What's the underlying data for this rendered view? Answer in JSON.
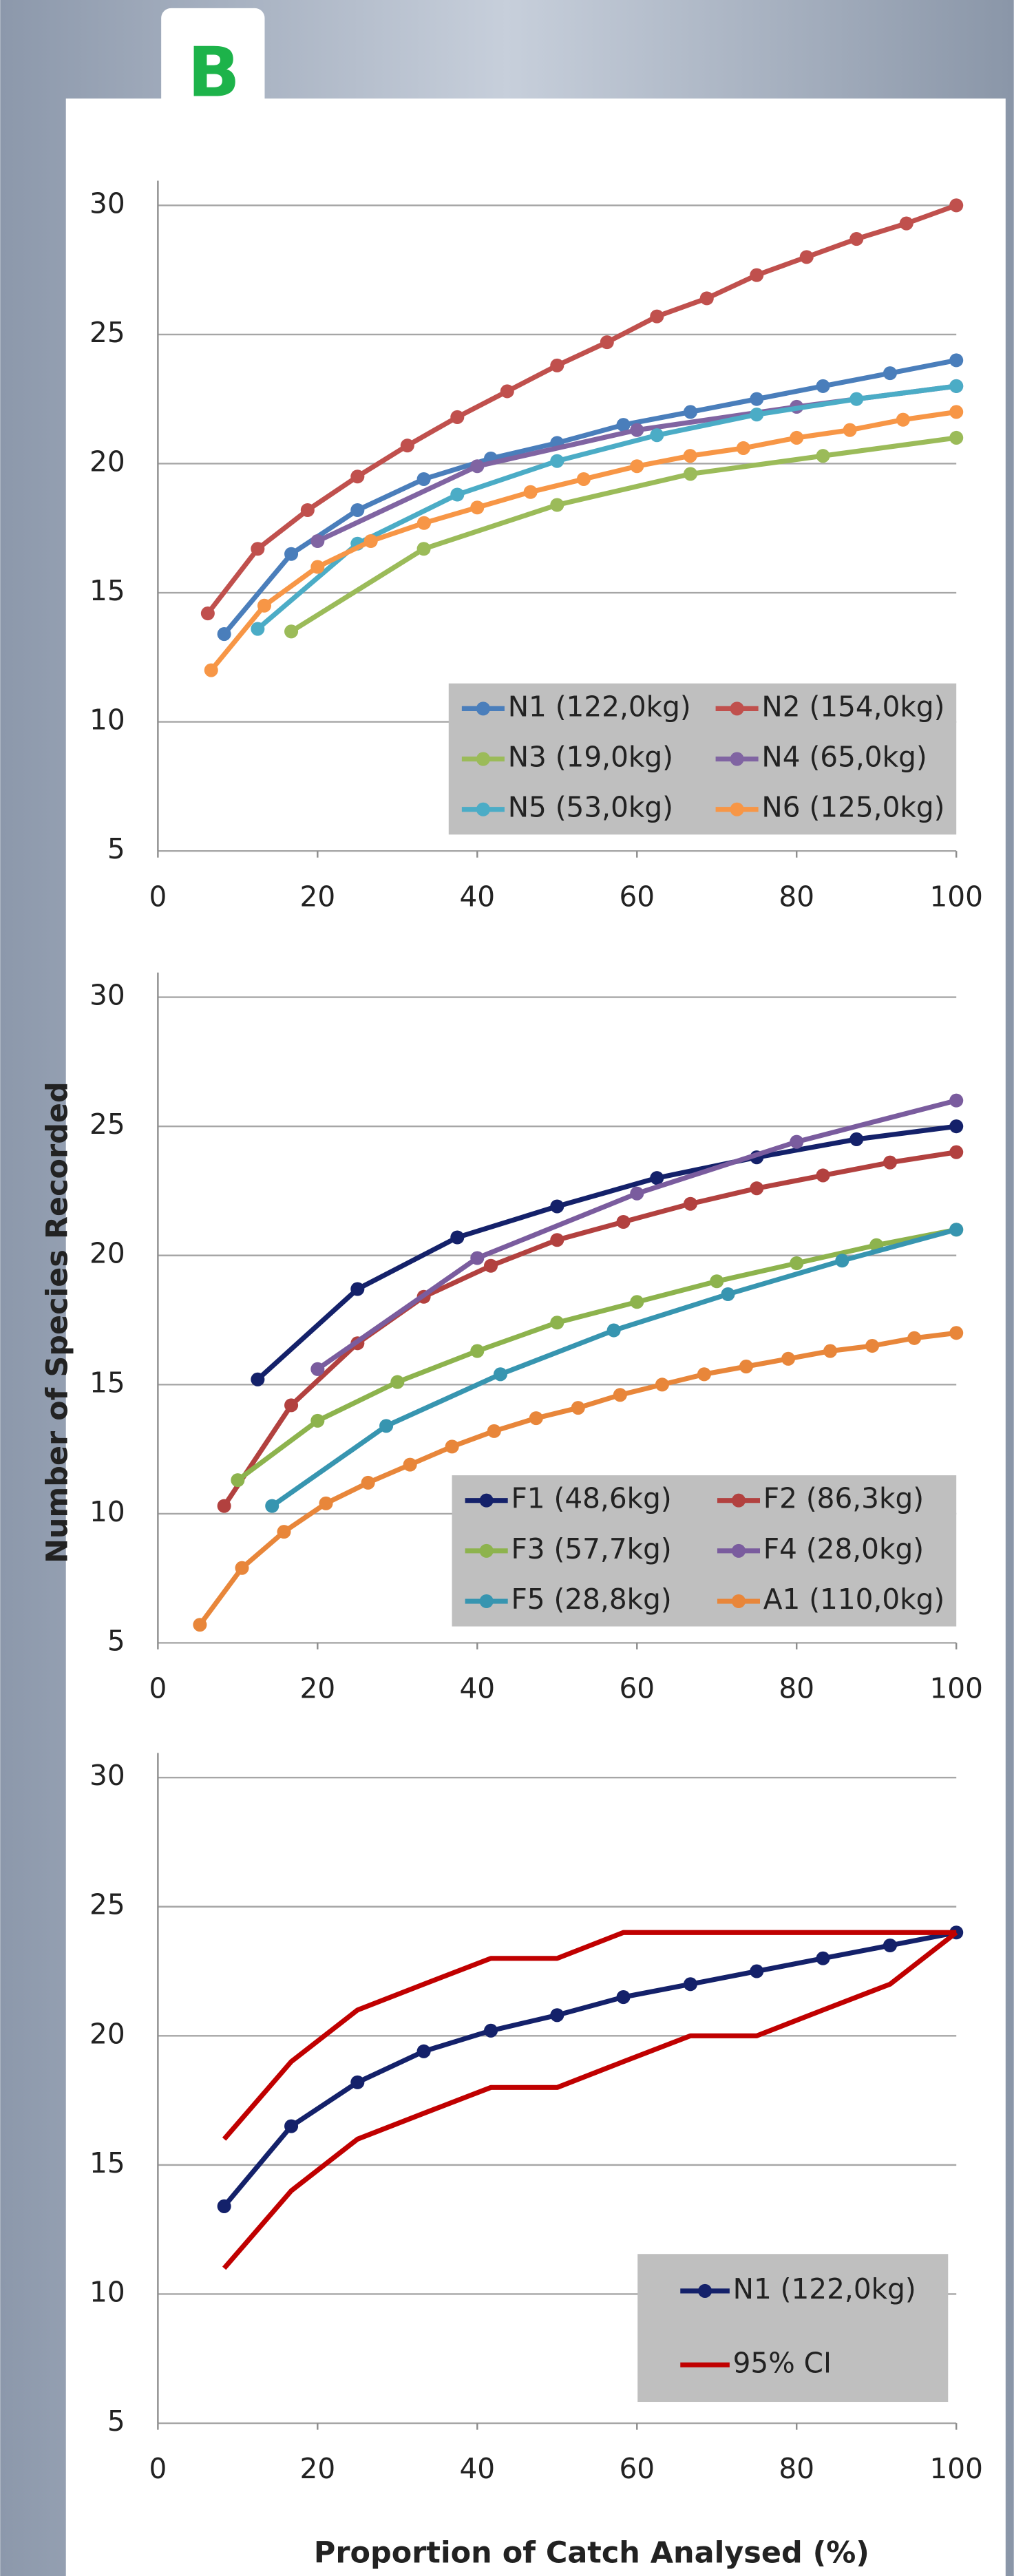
{
  "chart_data": [
    {
      "type": "line",
      "panel": "B",
      "xlim": [
        0,
        100
      ],
      "ylim": [
        5,
        30
      ],
      "xticks": [
        0,
        20,
        40,
        60,
        80,
        100
      ],
      "yticks": [
        5,
        10,
        15,
        20,
        25,
        30
      ],
      "grid": true,
      "series": [
        {
          "name": "N1 (122,0kg)",
          "color": "#4a7ebb",
          "x": [
            8.3,
            16.7,
            25,
            33.3,
            41.7,
            50,
            58.3,
            66.7,
            75,
            83.3,
            91.7,
            100
          ],
          "values": [
            13.4,
            16.5,
            18.2,
            19.4,
            20.2,
            20.8,
            21.5,
            22.0,
            22.5,
            23.0,
            23.5,
            24.0
          ]
        },
        {
          "name": "N2 (154,0kg)",
          "color": "#c0504d",
          "x": [
            6.25,
            12.5,
            18.75,
            25,
            31.25,
            37.5,
            43.75,
            50,
            56.25,
            62.5,
            68.75,
            75,
            81.25,
            87.5,
            93.75,
            100
          ],
          "values": [
            14.2,
            16.7,
            18.2,
            19.5,
            20.7,
            21.8,
            22.8,
            23.8,
            24.7,
            25.7,
            26.4,
            27.3,
            28.0,
            28.7,
            29.3,
            30.0
          ]
        },
        {
          "name": "N3 (19,0kg)",
          "color": "#9bbb59",
          "x": [
            16.7,
            33.3,
            50,
            66.7,
            83.3,
            100
          ],
          "values": [
            13.5,
            16.7,
            18.4,
            19.6,
            20.3,
            21.0
          ]
        },
        {
          "name": "N4 (65,0kg)",
          "color": "#8064a2",
          "x": [
            20,
            40,
            60,
            80,
            100
          ],
          "values": [
            17.0,
            19.9,
            21.3,
            22.2,
            23.0
          ]
        },
        {
          "name": "N5 (53,0kg)",
          "color": "#4bacc6",
          "x": [
            12.5,
            25,
            37.5,
            50,
            62.5,
            75,
            87.5,
            100
          ],
          "values": [
            13.6,
            16.9,
            18.8,
            20.1,
            21.1,
            21.9,
            22.5,
            23.0
          ]
        },
        {
          "name": "N6 (125,0kg)",
          "color": "#f79646",
          "x": [
            6.67,
            13.33,
            20,
            26.67,
            33.33,
            40,
            46.67,
            53.33,
            60,
            66.67,
            73.33,
            80,
            86.67,
            93.33,
            100
          ],
          "values": [
            12.0,
            14.5,
            16.0,
            17.0,
            17.7,
            18.3,
            18.9,
            19.4,
            19.9,
            20.3,
            20.6,
            21.0,
            21.3,
            21.7,
            22.0
          ]
        }
      ]
    },
    {
      "type": "line",
      "ylabel": "Number of Species Recorded",
      "xlim": [
        0,
        100
      ],
      "ylim": [
        5,
        30
      ],
      "xticks": [
        0,
        20,
        40,
        60,
        80,
        100
      ],
      "yticks": [
        5,
        10,
        15,
        20,
        25,
        30
      ],
      "grid": true,
      "series": [
        {
          "name": "F1 (48,6kg)",
          "color": "#14216a",
          "x": [
            12.5,
            25,
            37.5,
            50,
            62.5,
            75,
            87.5,
            100
          ],
          "values": [
            15.2,
            18.7,
            20.7,
            21.9,
            23.0,
            23.8,
            24.5,
            25.0
          ]
        },
        {
          "name": "F2 (86,3kg)",
          "color": "#b2413f",
          "x": [
            8.3,
            16.7,
            25,
            33.3,
            41.7,
            50,
            58.3,
            66.7,
            75,
            83.3,
            91.7,
            100
          ],
          "values": [
            10.3,
            14.2,
            16.6,
            18.4,
            19.6,
            20.6,
            21.3,
            22.0,
            22.6,
            23.1,
            23.6,
            24.0
          ]
        },
        {
          "name": "F3 (57,7kg)",
          "color": "#8db34d",
          "x": [
            10,
            20,
            30,
            40,
            50,
            60,
            70,
            80,
            90,
            100
          ],
          "values": [
            11.3,
            13.6,
            15.1,
            16.3,
            17.4,
            18.2,
            19.0,
            19.7,
            20.4,
            21.0
          ]
        },
        {
          "name": "F4 (28,0kg)",
          "color": "#7a5c9e",
          "x": [
            20,
            40,
            60,
            80,
            100
          ],
          "values": [
            15.6,
            19.9,
            22.4,
            24.4,
            26.0
          ]
        },
        {
          "name": "F5 (28,8kg)",
          "color": "#3795b0",
          "x": [
            14.3,
            28.6,
            42.9,
            57.1,
            71.4,
            85.7,
            100
          ],
          "values": [
            10.3,
            13.4,
            15.4,
            17.1,
            18.5,
            19.8,
            21.0
          ]
        },
        {
          "name": "A1 (110,0kg)",
          "color": "#e8863a",
          "x": [
            5.26,
            10.53,
            15.79,
            21.05,
            26.32,
            31.58,
            36.84,
            42.11,
            47.37,
            52.63,
            57.89,
            63.16,
            68.42,
            73.68,
            78.95,
            84.21,
            89.47,
            94.74,
            100
          ],
          "values": [
            5.7,
            7.9,
            9.3,
            10.4,
            11.2,
            11.9,
            12.6,
            13.2,
            13.7,
            14.1,
            14.6,
            15.0,
            15.4,
            15.7,
            16.0,
            16.3,
            16.5,
            16.8,
            17.0
          ]
        }
      ]
    },
    {
      "type": "line",
      "xlabel": "Proportion of Catch Analysed (%)",
      "xlim": [
        0,
        100
      ],
      "ylim": [
        5,
        30
      ],
      "xticks": [
        0,
        20,
        40,
        60,
        80,
        100
      ],
      "yticks": [
        5,
        10,
        15,
        20,
        25,
        30
      ],
      "grid": true,
      "series": [
        {
          "name": "N1 (122,0kg)",
          "color": "#14216a",
          "x": [
            8.3,
            16.7,
            25,
            33.3,
            41.7,
            50,
            58.3,
            66.7,
            75,
            83.3,
            91.7,
            100
          ],
          "values": [
            13.4,
            16.5,
            18.2,
            19.4,
            20.2,
            20.8,
            21.5,
            22.0,
            22.5,
            23.0,
            23.5,
            24.0
          ]
        },
        {
          "name": "95% CI",
          "color": "#c00000",
          "x": [
            8.3,
            16.7,
            25,
            33.3,
            41.7,
            50,
            58.3,
            66.7,
            75,
            83.3,
            91.7,
            100
          ],
          "values": [
            16,
            19,
            21,
            22,
            23,
            23,
            24,
            24,
            24,
            24,
            24,
            24
          ],
          "lower": [
            11,
            14,
            16,
            17,
            18,
            18,
            19,
            20,
            20,
            21,
            22,
            24
          ]
        }
      ]
    }
  ]
}
